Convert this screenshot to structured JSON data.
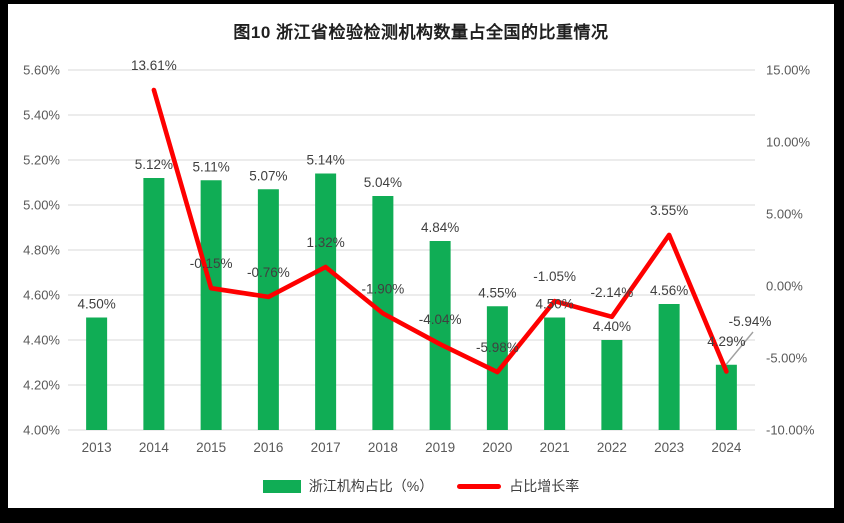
{
  "chart_data": {
    "type": "combo",
    "title": "图10  浙江省检验检测机构数量占全国的比重情况",
    "categories": [
      "2013",
      "2014",
      "2015",
      "2016",
      "2017",
      "2018",
      "2019",
      "2020",
      "2021",
      "2022",
      "2023",
      "2024"
    ],
    "series": [
      {
        "name": "浙江机构占比（%）",
        "type": "bar",
        "axis": "left",
        "color": "#10AD55",
        "values": [
          4.5,
          5.12,
          5.11,
          5.07,
          5.14,
          5.04,
          4.84,
          4.55,
          4.5,
          4.4,
          4.56,
          4.29
        ],
        "labels": [
          "4.50%",
          "5.12%",
          "5.11%",
          "5.07%",
          "5.14%",
          "5.04%",
          "4.84%",
          "4.55%",
          "4.50%",
          "4.40%",
          "4.56%",
          "4.29%"
        ]
      },
      {
        "name": "占比增长率",
        "type": "line",
        "axis": "right",
        "color": "#FE0000",
        "values": [
          null,
          13.61,
          -0.15,
          -0.76,
          1.32,
          -1.9,
          -4.04,
          -5.98,
          -1.05,
          -2.14,
          3.55,
          -5.94
        ],
        "labels": [
          null,
          "13.61%",
          "-0.15%",
          "-0.76%",
          "1.32%",
          "-1.90%",
          "-4.04%",
          "-5.98%",
          "-1.05%",
          "-2.14%",
          "3.55%",
          "-5.94%"
        ]
      }
    ],
    "left_axis": {
      "min": 4.0,
      "max": 5.6,
      "tick_step": 0.2,
      "tick_labels": [
        "4.00%",
        "4.20%",
        "4.40%",
        "4.60%",
        "4.80%",
        "5.00%",
        "5.20%",
        "5.40%",
        "5.60%"
      ]
    },
    "right_axis": {
      "min": -10.0,
      "max": 15.0,
      "tick_step": 5.0,
      "tick_labels": [
        "-10.00%",
        "-5.00%",
        "0.00%",
        "5.00%",
        "10.00%",
        "15.00%"
      ]
    },
    "grid": true,
    "legend_position": "bottom",
    "colors": {
      "gridline": "#D9D9D9",
      "axis_text": "#595959",
      "data_label_text": "#404040",
      "leader_line": "#A0A0A0"
    },
    "layout_hints": {
      "callout_index": 11,
      "line_label_override": {
        "x": 742,
        "y": 322
      },
      "leader_points": [
        [
          716,
          363
        ],
        [
          745,
          328
        ]
      ],
      "bar_label_dy_override": {
        "11": -10
      }
    }
  }
}
